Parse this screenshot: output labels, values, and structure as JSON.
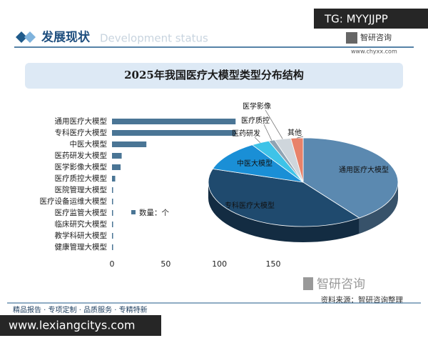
{
  "header": {
    "title": "发展现状",
    "watermark": "Development status",
    "brand": "智研咨询",
    "url": "www.chyxx.com"
  },
  "chart_data": [
    {
      "type": "bar",
      "title": "2025年我国医疗大模型类型分布结构",
      "orientation": "horizontal",
      "categories": [
        "通用医疗大模型",
        "专科医疗大模型",
        "中医大模型",
        "医药研发大模型",
        "医学影像大模型",
        "医疗质控大模型",
        "医院管理大模型",
        "医疗设备运维大模型",
        "医疗监管大模型",
        "临床研究大模型",
        "教学科研大模型",
        "健康管理大模型"
      ],
      "series": [
        {
          "name": "数量：个",
          "color": "#4a7595",
          "values": [
            115,
            115,
            32,
            9,
            8,
            3,
            1,
            1,
            1,
            1,
            1,
            1
          ]
        }
      ],
      "xlim": [
        0,
        150
      ],
      "xticks": [
        0,
        50,
        100,
        150
      ]
    },
    {
      "type": "pie",
      "categories": [
        "通用医疗大模型",
        "专科医疗大模型",
        "中医大模型",
        "医药研发",
        "医疗质控",
        "医学影像",
        "其他"
      ],
      "colors": [
        "#5b89b0",
        "#1f4a6e",
        "#1a8fd6",
        "#3ec3e8",
        "#8fa3b3",
        "#cfd6dc",
        "#e8826a"
      ],
      "values": [
        115,
        115,
        32,
        9,
        3,
        8,
        6
      ]
    }
  ],
  "footer": {
    "source": "资料来源：智研咨询整理",
    "slogan": "精品报告 · 专项定制 · 品质服务 · 专精特新",
    "brand": "智研咨询"
  },
  "overlays": {
    "top": "TG: MYYJJPP",
    "bottom": "www.lexiangcitys.com"
  }
}
